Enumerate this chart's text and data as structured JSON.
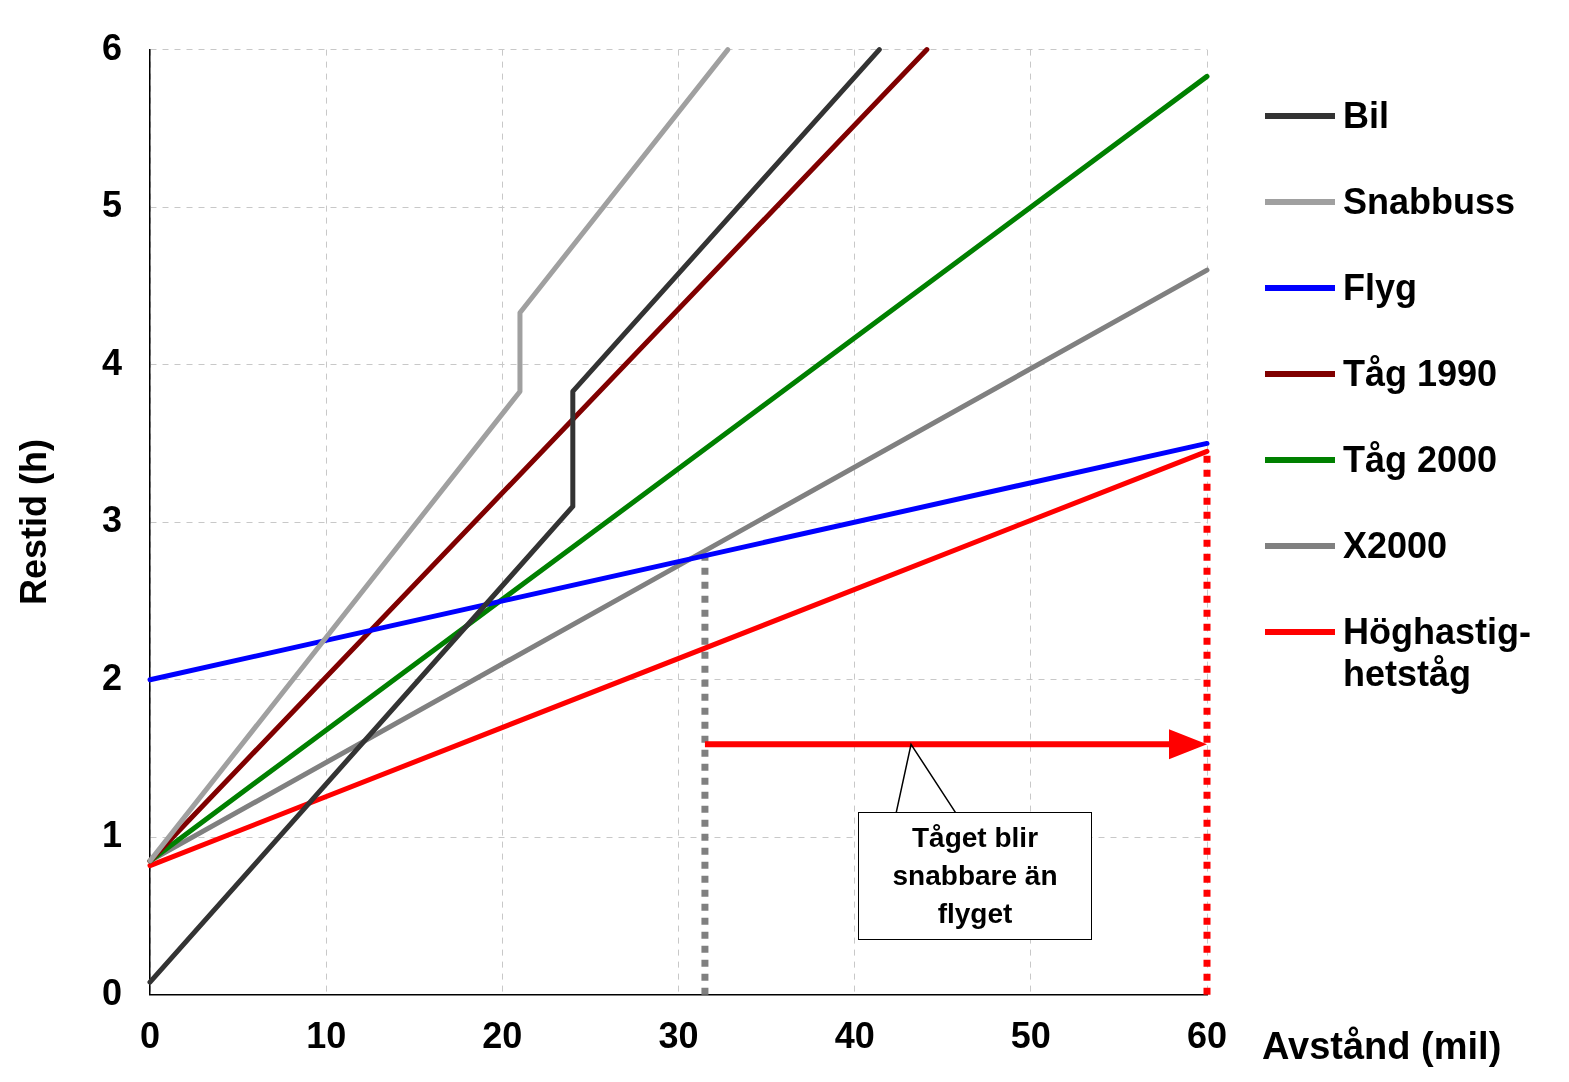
{
  "chart_data": {
    "type": "line",
    "xlabel": "Avstånd (mil)",
    "ylabel": "Restid (h)",
    "xlim": [
      0,
      60
    ],
    "ylim": [
      0,
      6
    ],
    "xticks": [
      0,
      10,
      20,
      30,
      40,
      50,
      60
    ],
    "yticks": [
      0,
      1,
      2,
      3,
      4,
      5,
      6
    ],
    "grid": true,
    "legend": "right",
    "marker": "none",
    "line_style": "solid",
    "series": [
      {
        "name": "Bil",
        "color": "#333333",
        "x": [
          0,
          24,
          24,
          41.4
        ],
        "values": [
          0.08,
          3.1,
          3.83,
          6
        ]
      },
      {
        "name": "Snabbuss",
        "color": "#a0a0a0",
        "x": [
          0,
          21,
          21,
          32.8
        ],
        "values": [
          0.85,
          3.83,
          4.33,
          6
        ]
      },
      {
        "name": "Flyg",
        "color": "#0000ff",
        "x": [
          0,
          60
        ],
        "values": [
          2,
          3.5
        ]
      },
      {
        "name": "Tåg 1990",
        "color": "#800000",
        "x": [
          0,
          44.1
        ],
        "values": [
          0.85,
          6
        ]
      },
      {
        "name": "Tåg 2000",
        "color": "#008000",
        "x": [
          0,
          60
        ],
        "values": [
          0.85,
          5.83
        ]
      },
      {
        "name": "X2000",
        "color": "#808080",
        "x": [
          0,
          60
        ],
        "values": [
          0.85,
          4.6
        ]
      },
      {
        "name": "Höghastig-hetståg",
        "color": "#ff0000",
        "x": [
          0,
          60
        ],
        "values": [
          0.82,
          3.45
        ]
      },
      {
        "color": "#808080",
        "line_style": "dotted",
        "x": [
          31.5,
          31.5
        ],
        "values": [
          0,
          2.78
        ]
      },
      {
        "color": "#ff0000",
        "line_style": "dotted",
        "x": [
          60,
          60
        ],
        "values": [
          0,
          3.45
        ]
      }
    ],
    "annotations": [
      "Tåget blir snabbare än flyget"
    ]
  }
}
